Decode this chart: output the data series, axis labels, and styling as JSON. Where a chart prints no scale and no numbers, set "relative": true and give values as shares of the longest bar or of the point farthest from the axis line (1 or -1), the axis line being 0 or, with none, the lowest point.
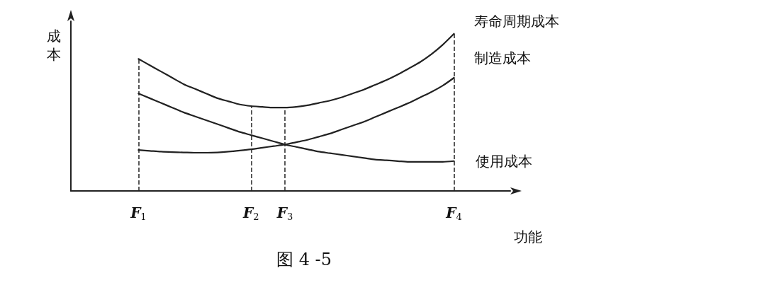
{
  "chart_data": {
    "type": "line",
    "relative": true,
    "xlabel": "功能",
    "ylabel": "成本",
    "annotations": [
      "图 4 -5"
    ],
    "categories": [
      null,
      null,
      null,
      null,
      null,
      null,
      "F$_{1}$",
      null,
      null,
      null,
      null,
      null,
      null,
      null,
      null,
      null,
      "F$_{2}$",
      null,
      null,
      "F$_{3}$",
      null,
      null,
      null,
      null,
      null,
      null,
      null,
      null,
      null,
      null,
      null,
      null,
      null,
      null,
      "F$_{4}$",
      null,
      null,
      null,
      null,
      null
    ],
    "marker": "none",
    "line_style": "solid",
    "grid": false,
    "legend": false,
    "series": [
      {
        "name": "寿命周期成本",
        "color": "#222222",
        "values": [
          null,
          null,
          null,
          null,
          null,
          null,
          0.84,
          0.8,
          0.76,
          0.72,
          0.68,
          0.65,
          0.62,
          0.59,
          0.57,
          0.55,
          0.54,
          0.535,
          0.53,
          0.53,
          0.535,
          0.545,
          0.56,
          0.575,
          0.595,
          0.62,
          0.645,
          0.675,
          0.705,
          0.74,
          0.78,
          0.82,
          0.87,
          0.93,
          1.0,
          null,
          null,
          null,
          null,
          null
        ]
      },
      {
        "name": "制造成本",
        "color": "#222222",
        "values": [
          null,
          null,
          null,
          null,
          null,
          null,
          0.26,
          0.255,
          0.25,
          0.247,
          0.245,
          0.243,
          0.243,
          0.245,
          0.25,
          0.257,
          0.265,
          0.275,
          0.285,
          0.295,
          0.31,
          0.325,
          0.345,
          0.365,
          0.39,
          0.415,
          0.44,
          0.47,
          0.5,
          0.53,
          0.56,
          0.595,
          0.63,
          0.67,
          0.72,
          null,
          null,
          null,
          null,
          null
        ]
      },
      {
        "name": "使用成本",
        "color": "#222222",
        "values": [
          null,
          null,
          null,
          null,
          null,
          null,
          0.62,
          0.59,
          0.56,
          0.53,
          0.5,
          0.475,
          0.45,
          0.425,
          0.4,
          0.375,
          0.355,
          0.335,
          0.315,
          0.295,
          0.28,
          0.265,
          0.25,
          0.24,
          0.23,
          0.22,
          0.21,
          0.2,
          0.195,
          0.19,
          0.185,
          0.185,
          0.185,
          0.185,
          0.19,
          null,
          null,
          null,
          null,
          null
        ]
      }
    ],
    "ref_lines": [
      {
        "axis": "x",
        "value": "F$_{1}$",
        "color": "#222222",
        "line_style": "dashed"
      },
      {
        "axis": "x",
        "value": "F$_{2}$",
        "color": "#222222",
        "line_style": "dashed"
      },
      {
        "axis": "x",
        "value": "F$_{3}$",
        "color": "#222222",
        "line_style": "dashed"
      },
      {
        "axis": "x",
        "value": "F$_{4}$",
        "color": "#222222",
        "line_style": "dashed"
      }
    ]
  }
}
